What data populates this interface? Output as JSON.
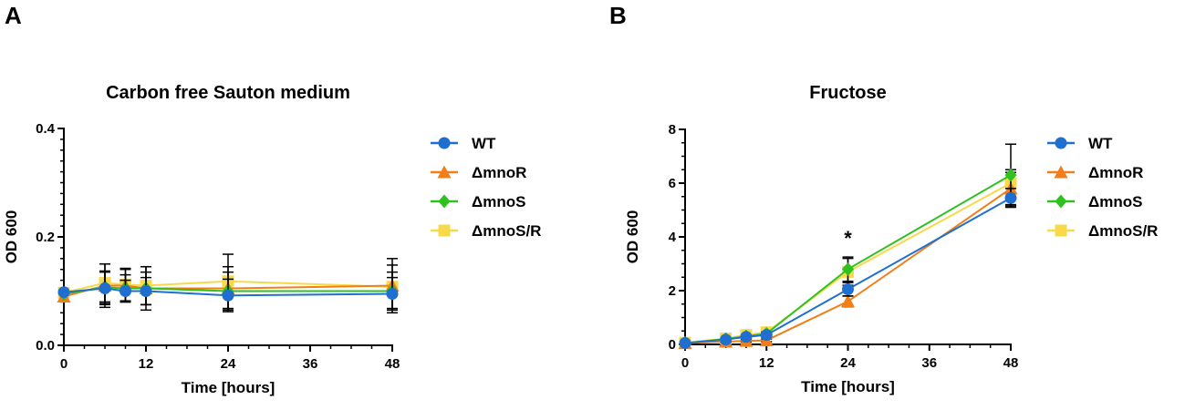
{
  "panels": {
    "a": "A",
    "b": "B"
  },
  "chart_data": [
    {
      "type": "line",
      "title": "Carbon free Sauton medium",
      "xlabel": "Time [hours]",
      "ylabel": "OD 600",
      "xlim": [
        0,
        48
      ],
      "ylim": [
        0,
        0.4
      ],
      "xticks": [
        0,
        12,
        24,
        36,
        48
      ],
      "xtick_labels": [
        "0",
        "12",
        "24",
        "36",
        "48"
      ],
      "yticks": [
        0,
        0.2,
        0.4
      ],
      "ytick_labels": [
        "0.0",
        "0.2",
        "0.4"
      ],
      "x": [
        0,
        6,
        9,
        12,
        24,
        48
      ],
      "legend_position": "right",
      "series": [
        {
          "name": "WT",
          "marker": "circle",
          "color": "#1f6fd1",
          "values": [
            0.098,
            0.105,
            0.1,
            0.1,
            0.092,
            0.095
          ],
          "errors": [
            0.0,
            0.03,
            0.02,
            0.025,
            0.03,
            0.03
          ]
        },
        {
          "name": "ΔmnoR",
          "marker": "triangle",
          "color": "#f07f1a",
          "values": [
            0.09,
            0.11,
            0.11,
            0.105,
            0.105,
            0.11
          ],
          "errors": [
            0.0,
            0.04,
            0.03,
            0.04,
            0.04,
            0.05
          ]
        },
        {
          "name": "ΔmnoS",
          "marker": "diamond",
          "color": "#2ec11f",
          "values": [
            0.095,
            0.107,
            0.105,
            0.105,
            0.1,
            0.1
          ],
          "errors": [
            0.0,
            0.03,
            0.025,
            0.03,
            0.035,
            0.035
          ]
        },
        {
          "name": "ΔmnoS/R",
          "marker": "square",
          "color": "#f7d94a",
          "values": [
            0.097,
            0.115,
            0.112,
            0.11,
            0.118,
            0.108
          ],
          "errors": [
            0.0,
            0.035,
            0.03,
            0.035,
            0.05,
            0.04
          ]
        }
      ]
    },
    {
      "type": "line",
      "title": "Fructose",
      "xlabel": "Time [hours]",
      "ylabel": "OD 600",
      "xlim": [
        0,
        48
      ],
      "ylim": [
        0,
        8
      ],
      "xticks": [
        0,
        12,
        24,
        36,
        48
      ],
      "xtick_labels": [
        "0",
        "12",
        "24",
        "36",
        "48"
      ],
      "yticks": [
        0,
        2,
        4,
        6,
        8
      ],
      "ytick_labels": [
        "0",
        "2",
        "4",
        "6",
        "8"
      ],
      "x": [
        0,
        6,
        9,
        12,
        24,
        48
      ],
      "legend_position": "right",
      "annotations": [
        {
          "text": "*",
          "x": 24,
          "y": 3.7
        }
      ],
      "series": [
        {
          "name": "WT",
          "marker": "circle",
          "color": "#1f6fd1",
          "values": [
            0.05,
            0.18,
            0.28,
            0.35,
            2.05,
            5.45
          ],
          "errors": [
            0.02,
            0.04,
            0.05,
            0.06,
            0.25,
            0.35
          ]
        },
        {
          "name": "ΔmnoR",
          "marker": "triangle",
          "color": "#f07f1a",
          "values": [
            0.05,
            0.1,
            0.13,
            0.15,
            1.6,
            5.8
          ],
          "errors": [
            0.02,
            0.03,
            0.04,
            0.05,
            0.2,
            0.6
          ]
        },
        {
          "name": "ΔmnoS",
          "marker": "diamond",
          "color": "#2ec11f",
          "values": [
            0.05,
            0.2,
            0.3,
            0.4,
            2.8,
            6.3
          ],
          "errors": [
            0.02,
            0.04,
            0.05,
            0.06,
            0.45,
            1.15
          ]
        },
        {
          "name": "ΔmnoS/R",
          "marker": "square",
          "color": "#f7d94a",
          "values": [
            0.06,
            0.22,
            0.35,
            0.45,
            2.7,
            6.0
          ],
          "errors": [
            0.02,
            0.05,
            0.06,
            0.07,
            0.5,
            0.5
          ]
        }
      ]
    }
  ]
}
